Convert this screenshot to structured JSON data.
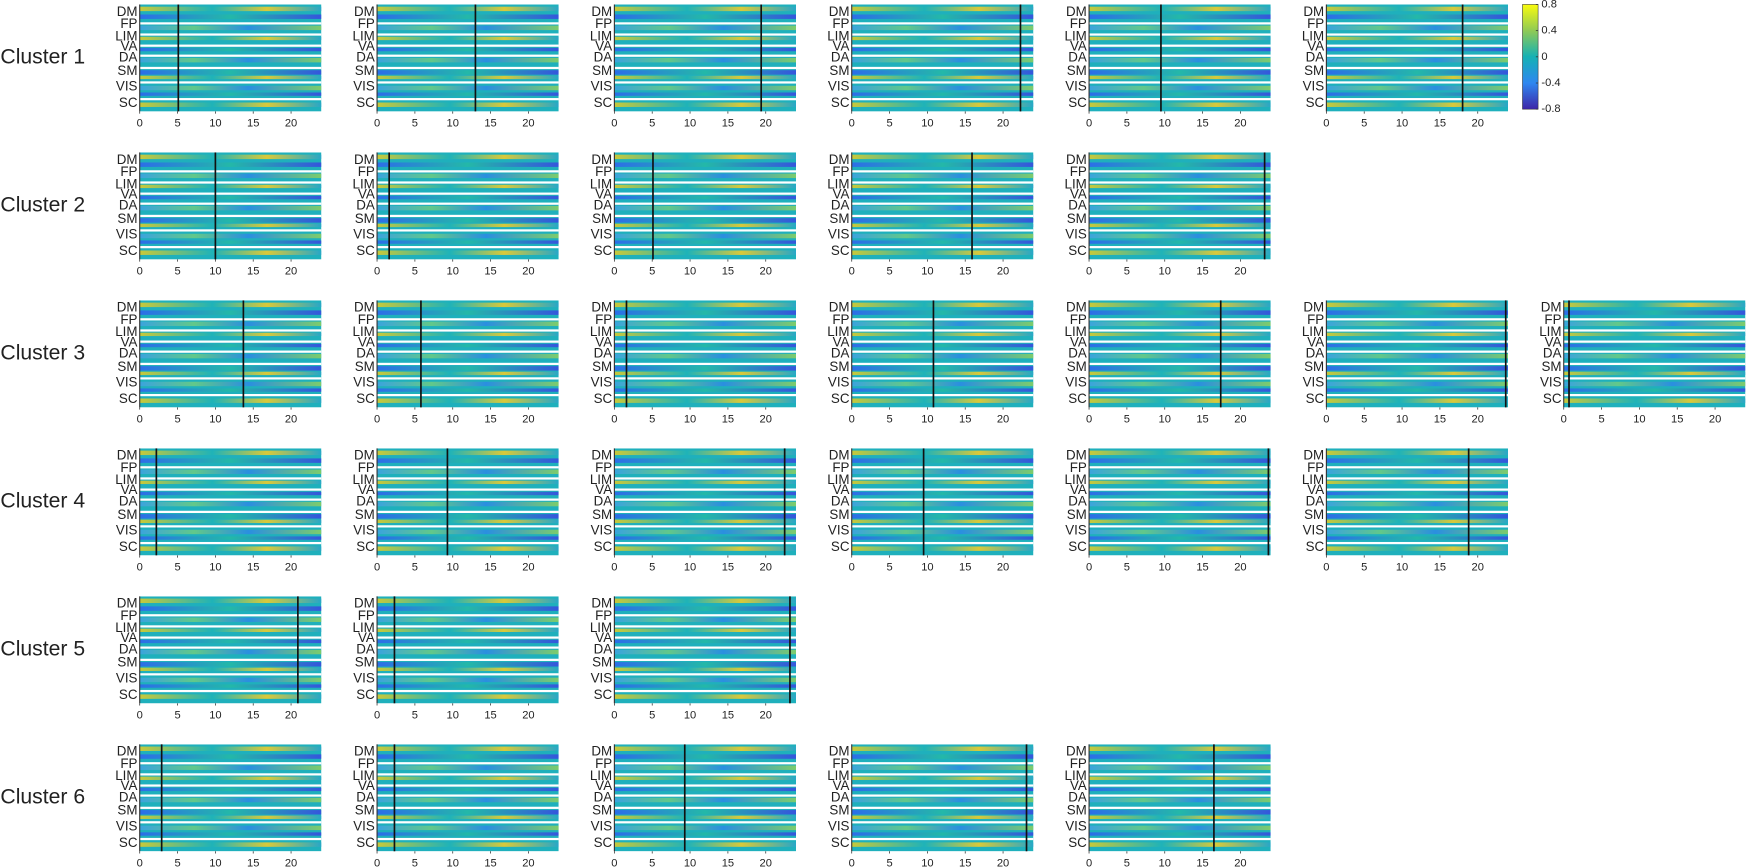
{
  "figure": {
    "xlim": [
      0,
      24
    ],
    "xticks": [
      0,
      5,
      10,
      15,
      20
    ],
    "y_labels": [
      "DM",
      "FP",
      "LIM",
      "VA",
      "DA",
      "SM",
      "VIS",
      "SC"
    ],
    "colorbar": {
      "lim": [
        -0.8,
        0.8
      ],
      "ticks": [
        0.8,
        0.4,
        0,
        -0.4,
        -0.8
      ]
    },
    "clusters": [
      {
        "label": "Cluster 1",
        "markers": [
          5.1,
          13,
          19.4,
          22.3,
          9.5,
          18
        ]
      },
      {
        "label": "Cluster 2",
        "markers": [
          10,
          1.6,
          5.1,
          15.9,
          23.2
        ]
      },
      {
        "label": "Cluster 3",
        "markers": [
          13.7,
          5.8,
          1.6,
          10.8,
          17.4,
          23.7,
          0.7
        ]
      },
      {
        "label": "Cluster 4",
        "markers": [
          2.2,
          9.3,
          22.5,
          9.5,
          23.7,
          18.8
        ]
      },
      {
        "label": "Cluster 5",
        "markers": [
          20.9,
          2.3,
          23.2
        ]
      },
      {
        "label": "Cluster 6",
        "markers": [
          2.9,
          2.3,
          9.3,
          23.1,
          16.5
        ]
      }
    ]
  }
}
